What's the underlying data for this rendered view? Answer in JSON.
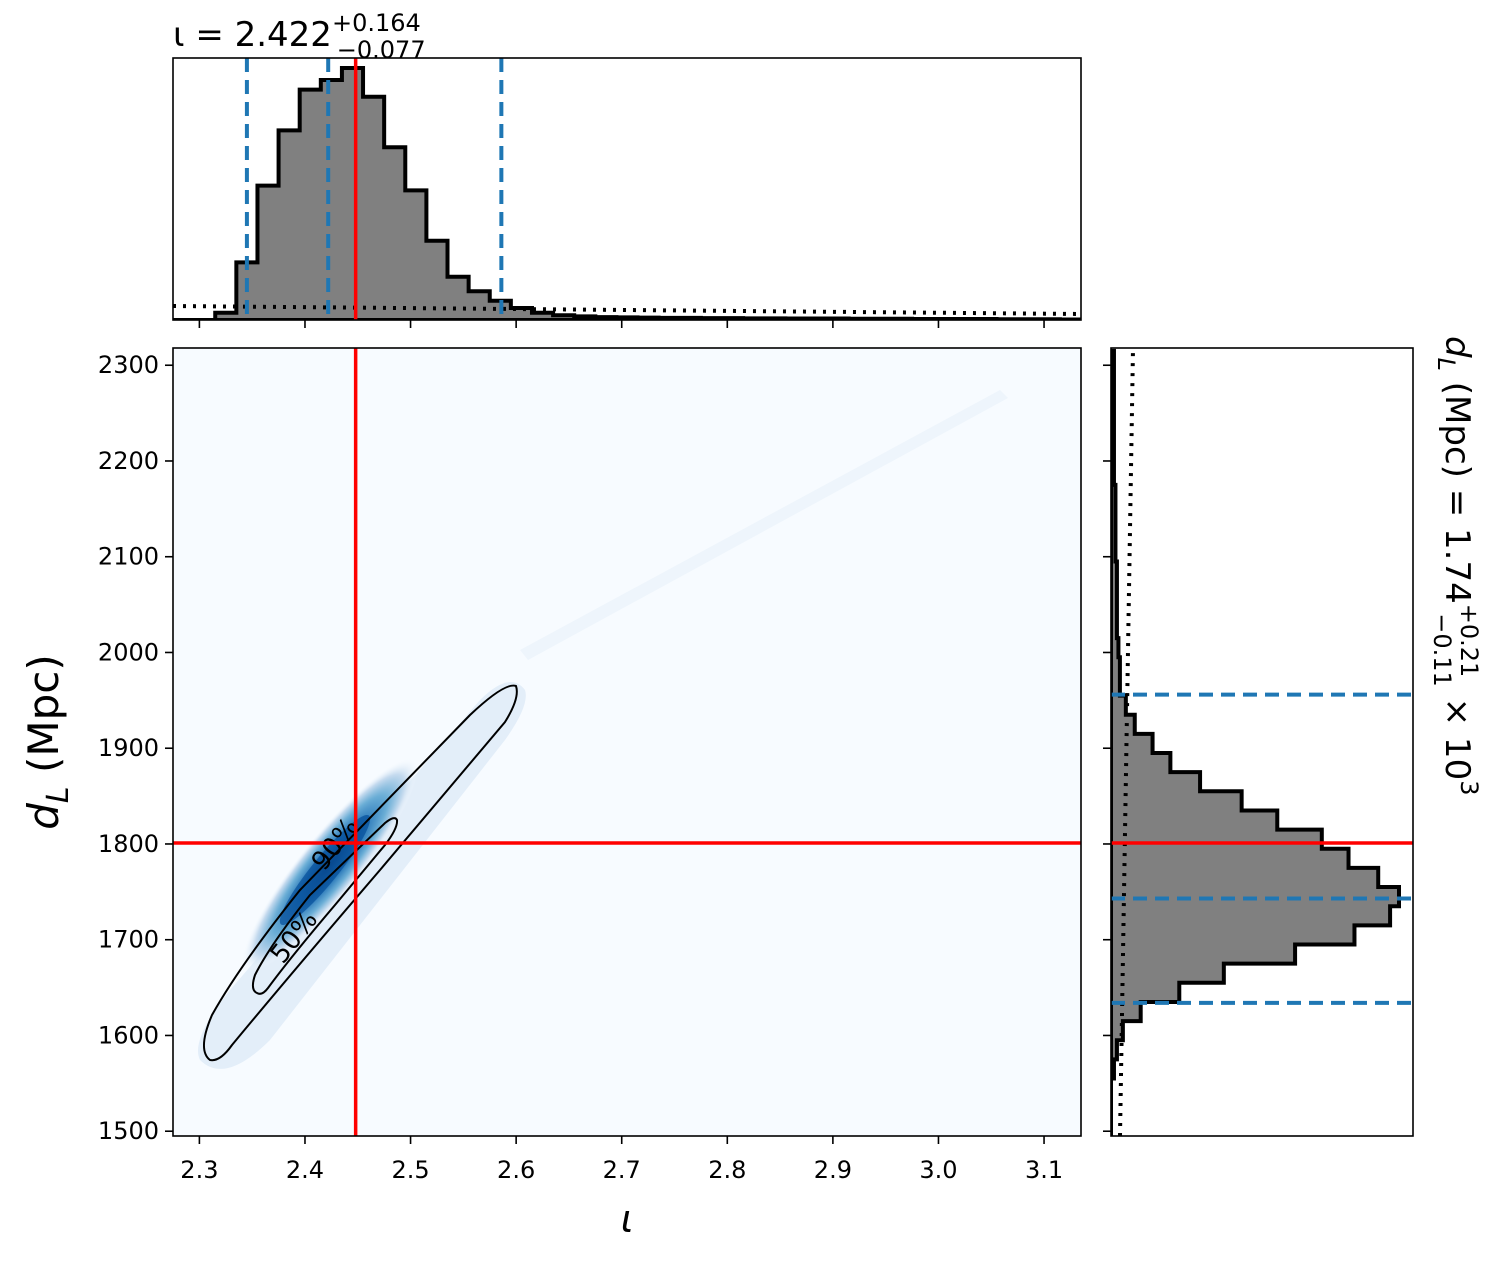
{
  "chart_data": {
    "type": "corner",
    "title": {
      "prefix": "ι = 2.422",
      "upper": "+0.164",
      "lower": "−0.077"
    },
    "side_title": {
      "prefix": "d",
      "sub": "L",
      "mid": " (Mpc) = 1.74",
      "upper": "+0.21",
      "lower": "−0.11",
      "suffix": " × 10",
      "exp": "3"
    },
    "xlabel": "ι",
    "ylabel": {
      "main": "d",
      "sub": "L",
      "rest": " (Mpc)"
    },
    "x_range": [
      2.275,
      3.135
    ],
    "y_range": [
      1495,
      2318
    ],
    "x_ticks": [
      "2.3",
      "2.4",
      "2.5",
      "2.6",
      "2.7",
      "2.8",
      "2.9",
      "3.0",
      "3.1"
    ],
    "y_ticks": [
      "1500",
      "1600",
      "1700",
      "1800",
      "1900",
      "2000",
      "2100",
      "2200",
      "2300"
    ],
    "injection": {
      "iota": 2.448,
      "dL": 1801
    },
    "iota_quantiles": [
      2.345,
      2.422,
      2.586
    ],
    "dL_quantiles": [
      1634,
      1743,
      1956
    ],
    "contour_labels": [
      "50%",
      "90%"
    ],
    "iota_hist": {
      "bin_width": 0.02,
      "start": 2.275,
      "density": [
        0.0,
        0.0,
        0.03,
        0.24,
        0.56,
        0.79,
        0.96,
        1.0,
        1.05,
        0.93,
        0.72,
        0.54,
        0.33,
        0.18,
        0.12,
        0.08,
        0.05,
        0.03,
        0.02,
        0.015,
        0.012,
        0.011,
        0.01,
        0.009,
        0.009,
        0.008,
        0.008,
        0.007,
        0.007,
        0.006,
        0.006,
        0.006,
        0.005,
        0.005,
        0.005,
        0.004,
        0.004,
        0.004,
        0.004,
        0.003,
        0.003,
        0.003,
        0.002
      ]
    },
    "dL_hist": {
      "bin_width": 20,
      "start": 1495,
      "density": [
        0.0,
        0.0,
        0.0,
        0.01,
        0.02,
        0.04,
        0.1,
        0.23,
        0.38,
        0.62,
        0.82,
        0.94,
        0.97,
        0.9,
        0.8,
        0.71,
        0.56,
        0.44,
        0.3,
        0.2,
        0.14,
        0.08,
        0.05,
        0.03,
        0.03,
        0.025,
        0.02,
        0.02,
        0.02,
        0.02,
        0.015,
        0.015,
        0.015,
        0.015,
        0.01,
        0.01,
        0.01,
        0.01,
        0.01,
        0.01,
        0.01
      ]
    },
    "colors": {
      "hist_fill": "#808080",
      "hist_edge": "#000000",
      "injection": "#ff0000",
      "quantile": "#1f77b4",
      "density_low": "#f7fbff",
      "density_high": "#08306b"
    },
    "grid": false
  }
}
